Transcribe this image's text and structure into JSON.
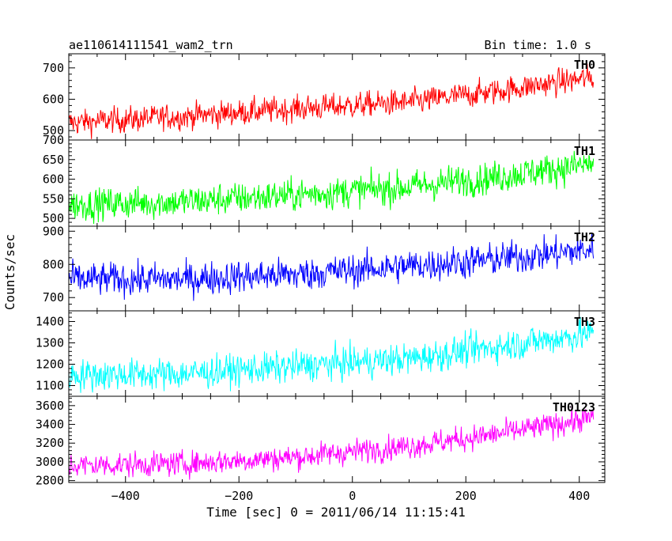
{
  "header": {
    "left": "ae110614111541_wam2_trn",
    "right": "Bin time: 1.0 s"
  },
  "chart_data": {
    "type": "line",
    "title": "ae110614111541_wam2_trn",
    "subtitle": "Bin time: 1.0 s",
    "xlabel": "Time [sec] 0 = 2011/06/14 11:15:41",
    "ylabel": "Counts/sec",
    "xlim": [
      -500,
      445
    ],
    "xticks": [
      -400,
      -200,
      0,
      200,
      400
    ],
    "xtick_labels": [
      "−400",
      "−200",
      "0",
      "200",
      "400"
    ],
    "x_data_range": [
      -500,
      425
    ],
    "bin_time_s": 1.0,
    "grid": false,
    "panels": [
      {
        "name": "TH0",
        "color": "#ff0000",
        "ylim": [
          470,
          745
        ],
        "yticks": [
          500,
          600,
          700
        ],
        "trend": [
          [
            -500,
            525
          ],
          [
            -300,
            545
          ],
          [
            -100,
            570
          ],
          [
            100,
            590
          ],
          [
            250,
            625
          ],
          [
            425,
            670
          ]
        ],
        "noise_amplitude": 25
      },
      {
        "name": "TH1",
        "color": "#00ff00",
        "ylim": [
          480,
          700
        ],
        "yticks": [
          500,
          550,
          600,
          650,
          700
        ],
        "trend": [
          [
            -500,
            535
          ],
          [
            -300,
            542
          ],
          [
            -100,
            560
          ],
          [
            100,
            580
          ],
          [
            250,
            605
          ],
          [
            425,
            640
          ]
        ],
        "noise_amplitude": 25
      },
      {
        "name": "TH2",
        "color": "#0000ff",
        "ylim": [
          660,
          915
        ],
        "yticks": [
          700,
          800,
          900
        ],
        "trend": [
          [
            -500,
            755
          ],
          [
            -300,
            755
          ],
          [
            -100,
            770
          ],
          [
            100,
            795
          ],
          [
            250,
            815
          ],
          [
            425,
            845
          ]
        ],
        "noise_amplitude": 30
      },
      {
        "name": "TH3",
        "color": "#00ffff",
        "ylim": [
          1050,
          1450
        ],
        "yticks": [
          1100,
          1200,
          1300,
          1400
        ],
        "trend": [
          [
            -500,
            1150
          ],
          [
            -300,
            1155
          ],
          [
            -100,
            1190
          ],
          [
            100,
            1225
          ],
          [
            250,
            1280
          ],
          [
            425,
            1345
          ]
        ],
        "noise_amplitude": 45
      },
      {
        "name": "TH0123",
        "color": "#ff00ff",
        "ylim": [
          2780,
          3700
        ],
        "yticks": [
          2800,
          3000,
          3200,
          3400,
          3600
        ],
        "trend": [
          [
            -500,
            2960
          ],
          [
            -300,
            2980
          ],
          [
            -100,
            3050
          ],
          [
            100,
            3170
          ],
          [
            250,
            3290
          ],
          [
            425,
            3470
          ]
        ],
        "noise_amplitude": 80
      }
    ]
  }
}
